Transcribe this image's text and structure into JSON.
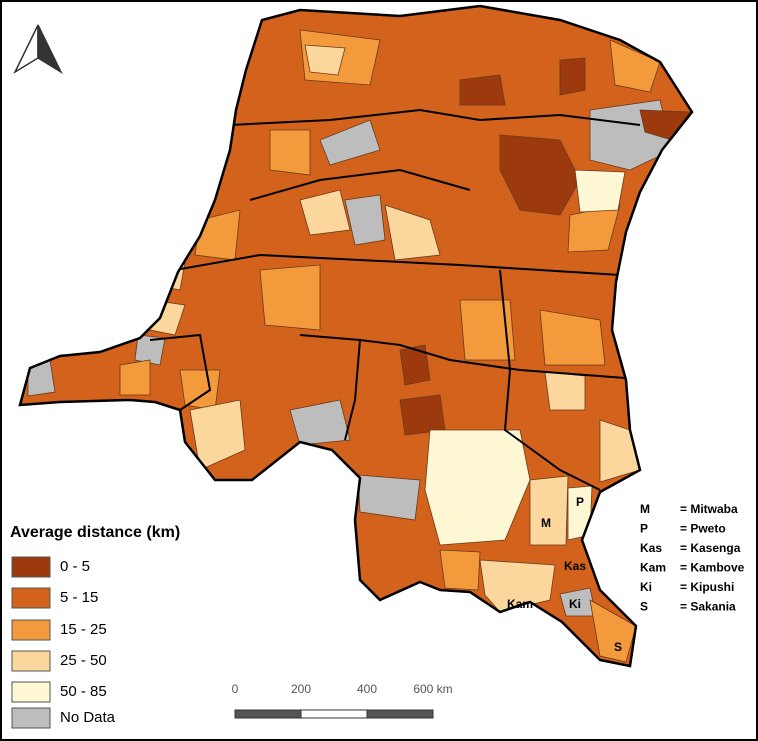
{
  "legend": {
    "title": "Average distance (km)",
    "items": [
      {
        "label": "0 - 5",
        "color": "#9c3a0e"
      },
      {
        "label": "5 - 15",
        "color": "#d2621c"
      },
      {
        "label": "15 - 25",
        "color": "#f39a3c"
      },
      {
        "label": "25 - 50",
        "color": "#fbd79d"
      },
      {
        "label": "50 - 85",
        "color": "#fdf7d4"
      },
      {
        "label": "No Data",
        "color": "#bdbdbd"
      }
    ]
  },
  "scale_bar": {
    "labels": [
      "0",
      "200",
      "400",
      "600 km"
    ]
  },
  "key": [
    {
      "abbr": "M",
      "name": "= Mitwaba"
    },
    {
      "abbr": "P",
      "name": "= Pweto"
    },
    {
      "abbr": "Kas",
      "name": "= Kasenga"
    },
    {
      "abbr": "Kam",
      "name": "= Kambove"
    },
    {
      "abbr": "Ki",
      "name": "= Kipushi"
    },
    {
      "abbr": "S",
      "name": "= Sakania"
    }
  ],
  "map_labels": [
    "M",
    "P",
    "Kas",
    "Kam",
    "Ki",
    "S"
  ]
}
